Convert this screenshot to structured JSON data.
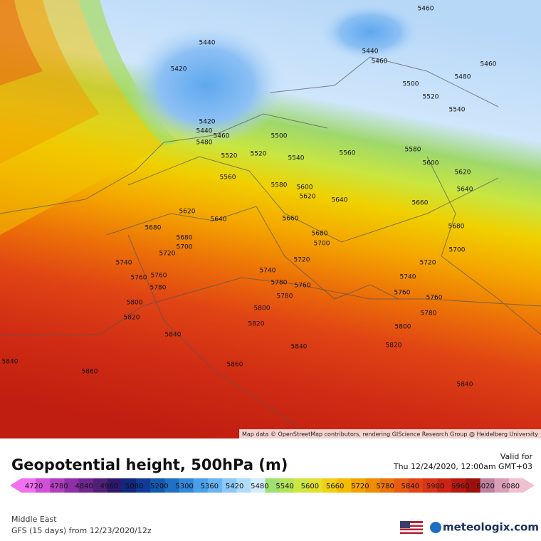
{
  "header": {
    "title": "Geopotential height, 500hPa (m)",
    "valid_label": "Valid for",
    "valid_time": "Thu 12/24/2020, 12:00am GMT+03"
  },
  "footer": {
    "region": "Middle East",
    "model": "GFS (15 days) from 12/23/2020/12z",
    "brand": "meteologix.com"
  },
  "map": {
    "attribution": "Map data © OpenStreetMap contributors, rendering GIScience Research Group @ Heidelberg University",
    "contour_labels": [
      "5460",
      "5440",
      "5440",
      "5460",
      "5460",
      "5420",
      "5480",
      "5500",
      "5520",
      "5540",
      "5420",
      "5440",
      "5460",
      "5500",
      "5480",
      "5520",
      "5520",
      "5540",
      "5560",
      "5580",
      "5600",
      "5620",
      "5560",
      "5580",
      "5600",
      "5620",
      "5640",
      "5640",
      "5660",
      "5620",
      "5640",
      "5660",
      "5680",
      "5680",
      "5680",
      "5680",
      "5700",
      "5700",
      "5700",
      "5720",
      "5720",
      "5720",
      "5740",
      "5740",
      "5760",
      "5760",
      "5740",
      "5780",
      "5780",
      "5760",
      "5760",
      "5780",
      "5760",
      "5800",
      "5800",
      "5780",
      "5820",
      "5820",
      "5800",
      "5840",
      "5840",
      "5820",
      "5840",
      "5860",
      "5860",
      "5840"
    ]
  },
  "colorbar": {
    "labels": [
      "4720",
      "4780",
      "4840",
      "4960",
      "5080",
      "5200",
      "5300",
      "5360",
      "5420",
      "5480",
      "5540",
      "5600",
      "5660",
      "5720",
      "5780",
      "5840",
      "5900",
      "5960",
      "6020",
      "6080"
    ],
    "colors": [
      "#f070f0",
      "#d050d8",
      "#b040c0",
      "#9030a8",
      "#702890",
      "#502078",
      "#301870",
      "#102880",
      "#103c98",
      "#1458b0",
      "#2070c8",
      "#3488dc",
      "#4aa0ec",
      "#68b4f4",
      "#8cc8f8",
      "#b0dcfc",
      "#d4ecfc",
      "#a0e070",
      "#b4e458",
      "#cce840",
      "#e4e030",
      "#f0d010",
      "#f4bc00",
      "#f4a400",
      "#f08c00",
      "#ec7408",
      "#e85c10",
      "#e04414",
      "#d83418",
      "#cc2414",
      "#b81810",
      "#9c100c",
      "#c080a0",
      "#d8a0b8",
      "#f0c0d0"
    ]
  }
}
